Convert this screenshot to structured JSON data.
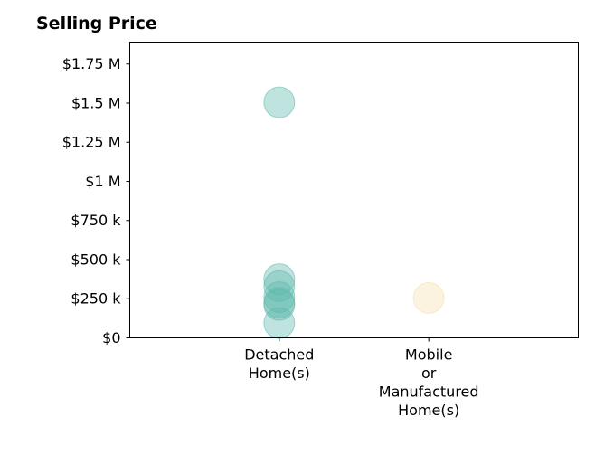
{
  "chart_data": {
    "type": "scatter",
    "title": "Selling Price",
    "xlabel": "",
    "ylabel": "",
    "categories": [
      [
        "Detached",
        "Home(s)"
      ],
      [
        "Mobile",
        "or",
        "Manufactured",
        "Home(s)"
      ]
    ],
    "ylim": [
      0,
      1890000
    ],
    "yticks": [
      {
        "value": 0,
        "label": "$0"
      },
      {
        "value": 250000,
        "label": "$250 k"
      },
      {
        "value": 500000,
        "label": "$500 k"
      },
      {
        "value": 750000,
        "label": "$750 k"
      },
      {
        "value": 1000000,
        "label": "$1 M"
      },
      {
        "value": 1250000,
        "label": "$1.25 M"
      },
      {
        "value": 1500000,
        "label": "$1.5 M"
      },
      {
        "value": 1750000,
        "label": "$1.75 M"
      }
    ],
    "grid": false,
    "series": [
      {
        "category": 0,
        "color": "#5fb8ad",
        "values": [
          1505000,
          375000,
          330000,
          260000,
          225000,
          210000,
          95000
        ]
      },
      {
        "category": 1,
        "color": "#f5deae",
        "values": [
          255000
        ]
      }
    ]
  }
}
